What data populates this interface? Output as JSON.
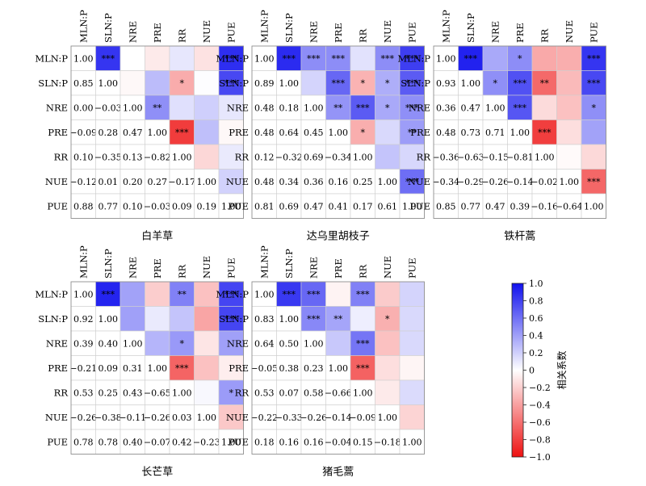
{
  "chart_data": {
    "type": "heatmap",
    "variables": [
      "MLN:P",
      "SLN:P",
      "NRE",
      "PRE",
      "RR",
      "NUE",
      "PUE"
    ],
    "colorbar": {
      "label": "相关系数",
      "range": [
        -1.0,
        1.0
      ],
      "ticks": [
        "1.0",
        "0.8",
        "0.6",
        "0.4",
        "0.2",
        "0",
        "−0.2",
        "−0.4",
        "−0.6",
        "−0.8",
        "−1.0"
      ],
      "colors": {
        "negative": "#ee1111",
        "zero": "#ffffff",
        "positive": "#1111ee"
      }
    },
    "panels": [
      {
        "name": "白羊草",
        "lower": [
          [
            1.0,
            null,
            null,
            null,
            null,
            null,
            null
          ],
          [
            0.85,
            1.0,
            null,
            null,
            null,
            null,
            null
          ],
          [
            0.0,
            -0.03,
            1.0,
            null,
            null,
            null,
            null
          ],
          [
            -0.09,
            0.28,
            0.47,
            1.0,
            null,
            null,
            null
          ],
          [
            0.1,
            -0.35,
            0.13,
            -0.82,
            1.0,
            null,
            null
          ],
          [
            -0.12,
            0.01,
            0.2,
            0.27,
            -0.17,
            1.0,
            null
          ],
          [
            0.88,
            0.77,
            0.1,
            -0.03,
            0.09,
            0.19,
            1.0
          ]
        ],
        "sig": [
          [
            "",
            "***",
            "",
            "",
            "",
            "",
            "***"
          ],
          [
            "",
            "",
            "",
            "",
            "*",
            "",
            "***"
          ],
          [
            "",
            "",
            "",
            "**",
            "",
            "",
            ""
          ],
          [
            "",
            "",
            "",
            "",
            "***",
            "",
            ""
          ],
          [
            "",
            "",
            "",
            "",
            "",
            "",
            ""
          ],
          [
            "",
            "",
            "",
            "",
            "",
            "",
            ""
          ],
          [
            "",
            "",
            "",
            "",
            "",
            "",
            ""
          ]
        ]
      },
      {
        "name": "达乌里胡枝子",
        "lower": [
          [
            1.0,
            null,
            null,
            null,
            null,
            null,
            null
          ],
          [
            0.89,
            1.0,
            null,
            null,
            null,
            null,
            null
          ],
          [
            0.48,
            0.18,
            1.0,
            null,
            null,
            null,
            null
          ],
          [
            0.48,
            0.64,
            0.45,
            1.0,
            null,
            null,
            null
          ],
          [
            0.12,
            -0.32,
            0.69,
            -0.34,
            1.0,
            null,
            null
          ],
          [
            0.48,
            0.34,
            0.36,
            0.16,
            0.25,
            1.0,
            null
          ],
          [
            0.81,
            0.69,
            0.47,
            0.41,
            0.17,
            0.61,
            1.0
          ]
        ],
        "sig": [
          [
            "",
            "***",
            "***",
            "***",
            "",
            "***",
            "***"
          ],
          [
            "",
            "",
            "",
            "***",
            "*",
            "*",
            "***"
          ],
          [
            "",
            "",
            "",
            "**",
            "***",
            "*",
            "***"
          ],
          [
            "",
            "",
            "",
            "",
            "*",
            "",
            "**"
          ],
          [
            "",
            "",
            "",
            "",
            "",
            "",
            ""
          ],
          [
            "",
            "",
            "",
            "",
            "",
            "",
            "***"
          ],
          [
            "",
            "",
            "",
            "",
            "",
            "",
            ""
          ]
        ]
      },
      {
        "name": "铁杆蒿",
        "lower": [
          [
            1.0,
            null,
            null,
            null,
            null,
            null,
            null
          ],
          [
            0.93,
            1.0,
            null,
            null,
            null,
            null,
            null
          ],
          [
            0.36,
            0.47,
            1.0,
            null,
            null,
            null,
            null
          ],
          [
            0.48,
            0.73,
            0.71,
            1.0,
            null,
            null,
            null
          ],
          [
            -0.36,
            -0.63,
            -0.15,
            -0.81,
            1.0,
            null,
            null
          ],
          [
            -0.34,
            -0.29,
            -0.26,
            -0.14,
            -0.02,
            1.0,
            null
          ],
          [
            0.85,
            0.77,
            0.47,
            0.39,
            -0.16,
            -0.64,
            1.0
          ]
        ],
        "sig": [
          [
            "",
            "***",
            "",
            "*",
            "",
            "",
            "***"
          ],
          [
            "",
            "",
            "*",
            "***",
            "**",
            "",
            "***"
          ],
          [
            "",
            "",
            "",
            "***",
            "",
            "",
            "*"
          ],
          [
            "",
            "",
            "",
            "",
            "***",
            "",
            ""
          ],
          [
            "",
            "",
            "",
            "",
            "",
            "",
            ""
          ],
          [
            "",
            "",
            "",
            "",
            "",
            "",
            "***"
          ],
          [
            "",
            "",
            "",
            "",
            "",
            "",
            ""
          ]
        ]
      },
      {
        "name": "长芒草",
        "lower": [
          [
            1.0,
            null,
            null,
            null,
            null,
            null,
            null
          ],
          [
            0.92,
            1.0,
            null,
            null,
            null,
            null,
            null
          ],
          [
            0.39,
            0.4,
            1.0,
            null,
            null,
            null,
            null
          ],
          [
            -0.21,
            0.09,
            0.31,
            1.0,
            null,
            null,
            null
          ],
          [
            0.53,
            0.25,
            0.43,
            -0.65,
            1.0,
            null,
            null
          ],
          [
            -0.26,
            -0.38,
            -0.11,
            -0.26,
            0.03,
            1.0,
            null
          ],
          [
            0.78,
            0.78,
            0.4,
            -0.07,
            0.42,
            -0.23,
            1.0
          ]
        ],
        "sig": [
          [
            "",
            "***",
            "",
            "",
            "**",
            "",
            "***"
          ],
          [
            "",
            "",
            "",
            "",
            "",
            "",
            "***"
          ],
          [
            "",
            "",
            "",
            "",
            "*",
            "",
            ""
          ],
          [
            "",
            "",
            "",
            "",
            "***",
            "",
            ""
          ],
          [
            "",
            "",
            "",
            "",
            "",
            "",
            "*"
          ],
          [
            "",
            "",
            "",
            "",
            "",
            "",
            ""
          ],
          [
            "",
            "",
            "",
            "",
            "",
            "",
            ""
          ]
        ]
      },
      {
        "name": "猪毛蒿",
        "lower": [
          [
            1.0,
            null,
            null,
            null,
            null,
            null,
            null
          ],
          [
            0.83,
            1.0,
            null,
            null,
            null,
            null,
            null
          ],
          [
            0.64,
            0.5,
            1.0,
            null,
            null,
            null,
            null
          ],
          [
            -0.05,
            0.38,
            0.23,
            1.0,
            null,
            null,
            null
          ],
          [
            0.53,
            0.07,
            0.58,
            -0.66,
            1.0,
            null,
            null
          ],
          [
            -0.22,
            -0.33,
            -0.26,
            -0.14,
            -0.09,
            1.0,
            null
          ],
          [
            0.18,
            0.16,
            0.16,
            -0.04,
            0.15,
            -0.18,
            1.0
          ]
        ],
        "sig": [
          [
            "",
            "***",
            "***",
            "",
            "***",
            "",
            ""
          ],
          [
            "",
            "",
            "***",
            "**",
            "",
            "*",
            ""
          ],
          [
            "",
            "",
            "",
            "",
            "***",
            "",
            ""
          ],
          [
            "",
            "",
            "",
            "",
            "***",
            "",
            ""
          ],
          [
            "",
            "",
            "",
            "",
            "",
            "",
            ""
          ],
          [
            "",
            "",
            "",
            "",
            "",
            "",
            ""
          ],
          [
            "",
            "",
            "",
            "",
            "",
            "",
            ""
          ]
        ]
      }
    ]
  }
}
